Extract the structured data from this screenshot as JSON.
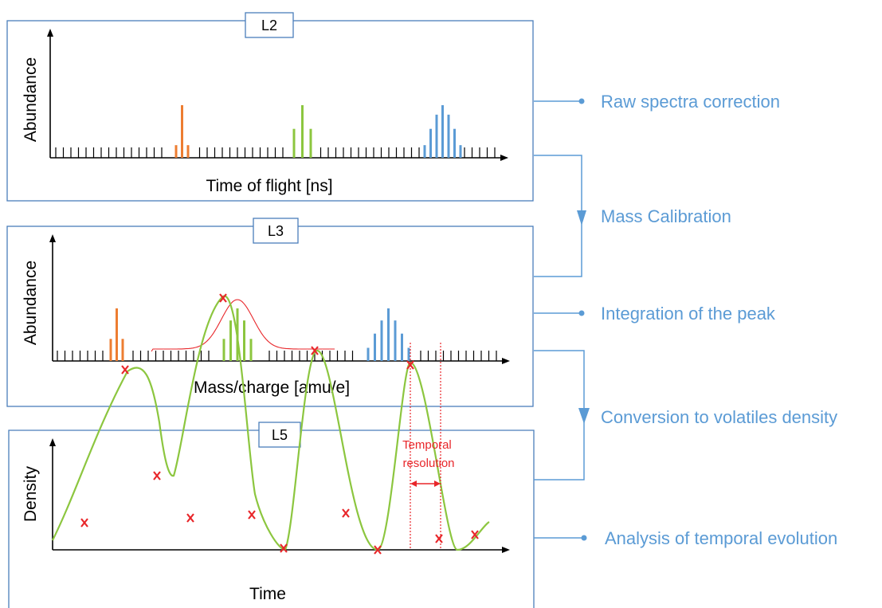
{
  "panels": [
    {
      "tag": "L2",
      "ylabel": "Abundance",
      "xlabel": "Time of flight [ns]"
    },
    {
      "tag": "L3",
      "ylabel": "Abundance",
      "xlabel": "Mass/charge [amu/e]"
    },
    {
      "tag": "L5",
      "ylabel": "Density",
      "xlabel": "Time",
      "annotation": "Temporal\nresolution"
    }
  ],
  "steps": [
    {
      "label": "Raw spectra correction",
      "marker": "dot"
    },
    {
      "label": "Mass Calibration",
      "marker": "arrow"
    },
    {
      "label": "Integration of the peak",
      "marker": "dot"
    },
    {
      "label": "Conversion to volatiles density",
      "marker": "arrow"
    },
    {
      "label": "Analysis of temporal evolution",
      "marker": "dot"
    }
  ],
  "colors": {
    "frame": "#4a7ebb",
    "steps": "#5b9bd5",
    "peak_orange": "#ed7d31",
    "peak_green": "#8cc63f",
    "peak_blue": "#5b9bd5",
    "curve": "#8cc63f",
    "marker": "#e8262a"
  },
  "chart_data": [
    {
      "type": "bar",
      "description_panel": "L2",
      "groups": [
        {
          "color": "orange",
          "relative_heights": [
            0.24,
            1.0,
            0.24
          ]
        },
        {
          "color": "green",
          "relative_heights": [
            0.55,
            1.0,
            0.55
          ]
        },
        {
          "color": "blue",
          "relative_heights": [
            0.24,
            0.55,
            0.82,
            1.0,
            0.82,
            0.55,
            0.24
          ]
        }
      ]
    },
    {
      "type": "bar",
      "description_panel": "L3",
      "groups": [
        {
          "color": "orange",
          "relative_heights": [
            0.42,
            1.0,
            0.42
          ]
        },
        {
          "color": "green",
          "relative_heights": [
            0.42,
            0.77,
            1.0,
            0.77,
            0.42
          ]
        },
        {
          "color": "blue",
          "relative_heights": [
            0.25,
            0.52,
            0.77,
            1.0,
            0.77,
            0.52,
            0.25
          ]
        }
      ],
      "fit_curve": "gaussian"
    },
    {
      "type": "line",
      "description_panel": "L5",
      "samples_marked": 14
    }
  ]
}
